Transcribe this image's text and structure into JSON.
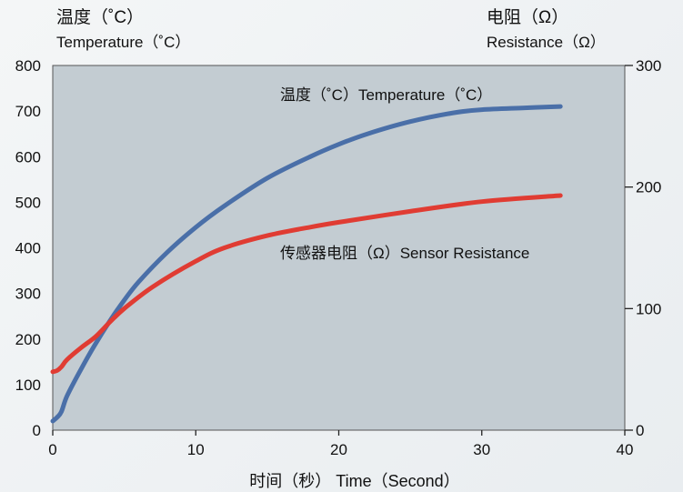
{
  "chart_data": {
    "type": "line",
    "left_axis_title_cn": "温度（˚C）",
    "left_axis_title_en": "Temperature（˚C）",
    "right_axis_title_cn": "电阻（Ω）",
    "right_axis_title_en": "Resistance（Ω）",
    "xlabel": "时间（秒） Time（Second）",
    "xlim": [
      0,
      40
    ],
    "ylim_left": [
      0,
      800
    ],
    "ylim_right": [
      0,
      300
    ],
    "x_ticks": [
      0,
      10,
      20,
      30,
      40
    ],
    "y_left_ticks": [
      0,
      100,
      200,
      300,
      400,
      500,
      600,
      700,
      800
    ],
    "y_right_ticks": [
      0,
      100,
      200,
      300
    ],
    "grid": false,
    "plot_background": "#c3ccd2",
    "series": [
      {
        "name": "温度（˚C）Temperature（˚C）",
        "axis": "left",
        "color": "#4a6fa8",
        "x": [
          0,
          0.3,
          0.6,
          1,
          2,
          3,
          4,
          5,
          6,
          8,
          10,
          12,
          15,
          18,
          20,
          22,
          25,
          28,
          30,
          33,
          35.5
        ],
        "y": [
          20,
          28,
          40,
          75,
          135,
          190,
          240,
          285,
          325,
          390,
          445,
          492,
          553,
          600,
          627,
          650,
          677,
          696,
          703,
          707,
          710
        ]
      },
      {
        "name": "传感器电阻（Ω）Sensor Resistance",
        "axis": "right",
        "color": "#e03c33",
        "x": [
          0,
          0.3,
          0.6,
          1,
          2,
          3,
          4,
          5,
          7,
          10,
          12,
          15,
          18,
          20,
          25,
          30,
          35.5
        ],
        "y": [
          48,
          49,
          52,
          58,
          68,
          77,
          89,
          100,
          118,
          139,
          150,
          160,
          167,
          171,
          180,
          188,
          193
        ]
      }
    ]
  }
}
